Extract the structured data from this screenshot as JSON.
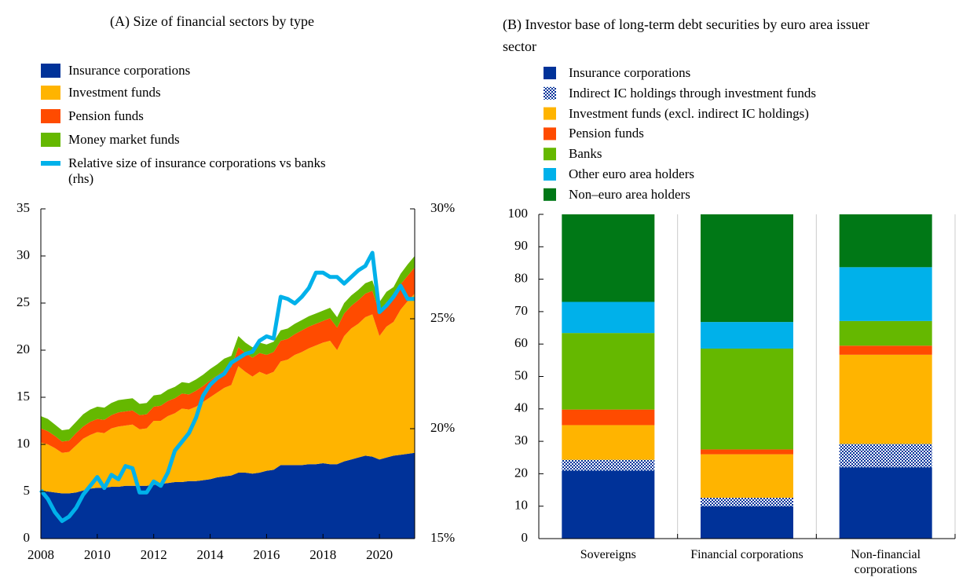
{
  "chart_data": [
    {
      "type": "area",
      "title": "(A) Size of financial sectors by type",
      "x": [
        2008,
        2008.25,
        2008.5,
        2008.75,
        2009,
        2009.25,
        2009.5,
        2009.75,
        2010,
        2010.25,
        2010.5,
        2010.75,
        2011,
        2011.25,
        2011.5,
        2011.75,
        2012,
        2012.25,
        2012.5,
        2012.75,
        2013,
        2013.25,
        2013.5,
        2013.75,
        2014,
        2014.25,
        2014.5,
        2014.75,
        2015,
        2015.25,
        2015.5,
        2015.75,
        2016,
        2016.25,
        2016.5,
        2016.75,
        2017,
        2017.25,
        2017.5,
        2017.75,
        2018,
        2018.25,
        2018.5,
        2018.75,
        2019,
        2019.25,
        2019.5,
        2019.75,
        2020,
        2020.25,
        2020.5,
        2020.75,
        2021,
        2021.25
      ],
      "xlim": [
        2008,
        2021.25
      ],
      "xticks": [
        2008,
        2010,
        2012,
        2014,
        2016,
        2018,
        2020
      ],
      "ylim": [
        0,
        35
      ],
      "yticks": [
        0,
        5,
        10,
        15,
        20,
        25,
        30,
        35
      ],
      "y2lim": [
        15,
        30
      ],
      "y2ticks": [
        {
          "value": 15,
          "label": "15%"
        },
        {
          "value": 20,
          "label": "20%"
        },
        {
          "value": 25,
          "label": "25%"
        },
        {
          "value": 30,
          "label": "30%"
        }
      ],
      "series": [
        {
          "name": "Insurance corporations",
          "color": "#003299",
          "values": [
            5.0,
            5.0,
            4.9,
            4.8,
            4.8,
            4.9,
            5.1,
            5.3,
            5.4,
            5.4,
            5.5,
            5.5,
            5.6,
            5.6,
            5.6,
            5.6,
            5.7,
            5.8,
            5.9,
            6.0,
            6.0,
            6.1,
            6.1,
            6.2,
            6.3,
            6.5,
            6.6,
            6.7,
            7.0,
            7.0,
            6.9,
            7.0,
            7.2,
            7.3,
            7.8,
            7.8,
            7.8,
            7.8,
            7.9,
            7.9,
            8.0,
            7.9,
            7.9,
            8.2,
            8.4,
            8.6,
            8.8,
            8.7,
            8.4,
            8.6,
            8.8,
            8.9,
            9.0,
            9.1
          ]
        },
        {
          "name": "Investment funds",
          "color": "#ffb400",
          "values": [
            5.2,
            5.0,
            4.7,
            4.3,
            4.4,
            5.0,
            5.5,
            5.7,
            5.9,
            5.8,
            6.2,
            6.4,
            6.4,
            6.5,
            6.0,
            6.1,
            6.8,
            6.7,
            7.1,
            7.3,
            7.8,
            7.6,
            7.9,
            8.3,
            8.7,
            9.0,
            9.4,
            9.6,
            11.3,
            10.7,
            10.3,
            10.7,
            10.2,
            10.4,
            11.0,
            11.2,
            11.7,
            12.0,
            12.3,
            12.6,
            12.8,
            13.1,
            12.1,
            13.3,
            13.9,
            14.2,
            14.7,
            15.1,
            13.1,
            13.9,
            14.2,
            15.4,
            16.2,
            16.9
          ]
        },
        {
          "name": "Pension funds",
          "color": "#ff4b00",
          "values": [
            1.5,
            1.4,
            1.3,
            1.2,
            1.2,
            1.3,
            1.3,
            1.4,
            1.4,
            1.4,
            1.4,
            1.5,
            1.5,
            1.5,
            1.5,
            1.5,
            1.5,
            1.6,
            1.6,
            1.6,
            1.6,
            1.6,
            1.7,
            1.7,
            1.8,
            1.8,
            1.9,
            1.9,
            2.0,
            2.0,
            2.0,
            2.0,
            2.1,
            2.1,
            2.2,
            2.2,
            2.2,
            2.3,
            2.3,
            2.3,
            2.3,
            2.4,
            2.4,
            2.4,
            2.4,
            2.5,
            2.5,
            2.5,
            2.5,
            2.6,
            2.6,
            2.7,
            2.7,
            2.8
          ]
        },
        {
          "name": "Money market funds",
          "color": "#65b800",
          "values": [
            1.3,
            1.3,
            1.2,
            1.2,
            1.2,
            1.2,
            1.3,
            1.3,
            1.3,
            1.3,
            1.3,
            1.3,
            1.3,
            1.3,
            1.2,
            1.2,
            1.2,
            1.2,
            1.2,
            1.2,
            1.2,
            1.2,
            1.2,
            1.2,
            1.2,
            1.2,
            1.2,
            1.2,
            1.2,
            1.1,
            1.1,
            1.1,
            1.1,
            1.1,
            1.1,
            1.1,
            1.1,
            1.1,
            1.1,
            1.1,
            1.1,
            1.1,
            1.1,
            1.1,
            1.1,
            1.1,
            1.1,
            1.1,
            1.1,
            1.1,
            1.1,
            1.1,
            1.2,
            1.2
          ]
        },
        {
          "name": "Relative size of insurance corporations vs banks (rhs)",
          "color": "#00b1ea",
          "type": "line",
          "axis": "y2",
          "values": [
            17.2,
            16.8,
            16.2,
            15.8,
            16.0,
            16.4,
            17.0,
            17.4,
            17.8,
            17.3,
            17.9,
            17.7,
            18.3,
            18.2,
            17.1,
            17.1,
            17.6,
            17.4,
            18.0,
            19.0,
            19.4,
            19.8,
            20.5,
            21.5,
            22.0,
            22.3,
            22.5,
            23.0,
            23.2,
            23.4,
            23.5,
            24.0,
            24.2,
            24.1,
            26.0,
            25.9,
            25.7,
            26.0,
            26.4,
            27.1,
            27.1,
            26.9,
            26.9,
            26.6,
            26.9,
            27.2,
            27.4,
            28.0,
            25.3,
            25.6,
            26.0,
            26.5,
            25.9,
            25.9
          ]
        }
      ]
    },
    {
      "type": "bar",
      "stacked": true,
      "title": "(B) Investor base of long-term debt securities by euro area issuer sector",
      "categories": [
        "Sovereigns",
        "Financial corporations",
        "Non-financial corporations"
      ],
      "ylim": [
        0,
        100
      ],
      "yticks": [
        0,
        10,
        20,
        30,
        40,
        50,
        60,
        70,
        80,
        90,
        100
      ],
      "series": [
        {
          "name": "Insurance corporations",
          "color": "#003299",
          "values": [
            21,
            10,
            22
          ]
        },
        {
          "name": "Indirect IC holdings through investment funds",
          "color": "#003299",
          "pattern": "checker",
          "values": [
            3.3,
            2.6,
            7.2
          ]
        },
        {
          "name": "Investment funds (excl. indirect IC holdings)",
          "color": "#ffb400",
          "values": [
            10.7,
            13.4,
            27.5
          ]
        },
        {
          "name": "Pension funds",
          "color": "#ff4b00",
          "values": [
            4.8,
            1.5,
            2.8
          ]
        },
        {
          "name": "Banks",
          "color": "#65b800",
          "values": [
            23.6,
            31.1,
            7.6
          ]
        },
        {
          "name": "Other euro area holders",
          "color": "#00b1ea",
          "values": [
            9.6,
            8.2,
            16.6
          ]
        },
        {
          "name": "Non–euro area holders",
          "color": "#007816",
          "values": [
            27,
            33.2,
            16.3
          ]
        }
      ]
    }
  ]
}
